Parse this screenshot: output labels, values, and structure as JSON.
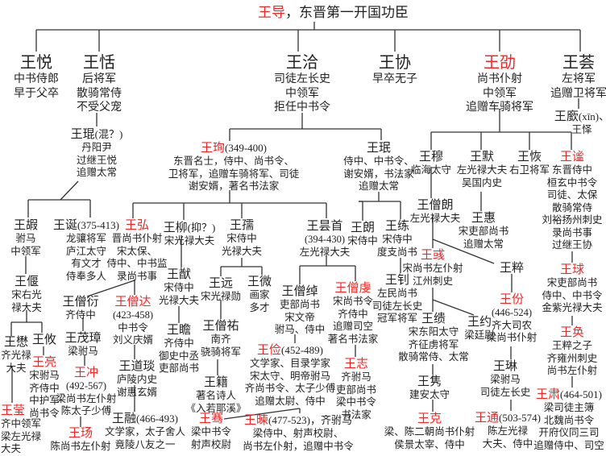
{
  "title": {
    "name": "王导",
    "rest": "，东晋第一开国功臣"
  },
  "accent_color": "#f02828",
  "persons": [
    {
      "id": "yue",
      "name": "王悦",
      "notes": [
        "中书侍郎",
        "早于父卒"
      ]
    },
    {
      "id": "tian",
      "name": "王恬",
      "notes": [
        "后将军",
        "散骑常侍",
        "不受父宠"
      ]
    },
    {
      "id": "qia",
      "name": "王洽",
      "notes": [
        "司徒左长史",
        "中领军",
        "拒任中书令"
      ]
    },
    {
      "id": "xie",
      "name": "王协",
      "notes": [
        "早卒无子"
      ]
    },
    {
      "id": "shao",
      "name": "王劭",
      "red": true,
      "notes": [
        "尚书仆射",
        "中领军",
        "追赠车骑将军"
      ]
    },
    {
      "id": "hui",
      "name": "王荟",
      "notes": [
        "左将军",
        "追赠卫将军"
      ]
    },
    {
      "id": "xin",
      "name": "王廞",
      "suffix": "(xīn)、",
      "notes": [
        "王怿"
      ]
    },
    {
      "id": "kun",
      "name": "王琨",
      "suffix": "(混？)",
      "notes": [
        "丹阳尹",
        "过继王悦",
        "追赠太常"
      ]
    },
    {
      "id": "xia",
      "name": "王嘏",
      "notes": [
        "驸马",
        "中领军"
      ]
    },
    {
      "id": "dan",
      "name": "王诞",
      "suffix": "(375-413)",
      "notes": [
        "龙骧将军",
        "庐江太守",
        "有文才",
        "侍奉多人"
      ]
    },
    {
      "id": "yan",
      "name": "王偃",
      "notes": [
        "宋右光",
        "禄大夫"
      ]
    },
    {
      "id": "mao",
      "name": "王懋",
      "notes": [
        "齐光禄",
        "大夫"
      ]
    },
    {
      "id": "you",
      "name": "王攸",
      "notes": []
    },
    {
      "id": "liang",
      "name": "王亮",
      "red": true,
      "notes": [
        "宋驸马",
        "齐侍中",
        "中护军",
        "尚书令"
      ]
    },
    {
      "id": "ying",
      "name": "王莹",
      "red": true,
      "notes": [
        "齐中领军",
        "梁左光禄",
        "大夫"
      ]
    },
    {
      "id": "xun",
      "name": "王珣",
      "red": true,
      "suffix": "(349-400)",
      "notes": [
        "东晋名士，侍中、尚书令、",
        "卫将军，追赠车骑将军、司徒",
        "谢安婿，著名书法家"
      ]
    },
    {
      "id": "min",
      "name": "王珉",
      "notes": [
        "侍中、中书令、",
        "谢安婿，书法家",
        "追赠太常"
      ]
    },
    {
      "id": "hong",
      "name": "王弘",
      "red": true,
      "notes": [
        "晋尚书仆射",
        "宋太保、",
        "侍中、中书监",
        "录尚书事"
      ]
    },
    {
      "id": "liu",
      "name": "王柳",
      "suffix": "(抑？)",
      "notes": [
        "宋光禄大夫"
      ]
    },
    {
      "id": "ru",
      "name": "王孺",
      "notes": [
        "宋侍中",
        "光禄大夫"
      ]
    },
    {
      "id": "tanshou",
      "name": "王昙首",
      "notes": [
        "(394-430)",
        "左光禄大夫"
      ]
    },
    {
      "id": "lang",
      "name": "王朗",
      "notes": [
        "宋侍中"
      ]
    },
    {
      "id": "lian",
      "name": "王练",
      "notes": [
        "宋侍中",
        "度支尚书"
      ]
    },
    {
      "id": "sengyan",
      "name": "王僧衍",
      "notes": [
        "齐侍中"
      ]
    },
    {
      "id": "sengda",
      "name": "王僧达",
      "red": true,
      "notes": [
        "(423-458)",
        "中书令",
        "刘义庆婿"
      ]
    },
    {
      "id": "yous",
      "name": "王猷",
      "notes": [
        "宋侍中",
        "光禄大夫"
      ]
    },
    {
      "id": "yuan",
      "name": "王远",
      "notes": [
        "宋光禄勋"
      ]
    },
    {
      "id": "wei",
      "name": "王微",
      "notes": [
        "画家",
        "多才"
      ]
    },
    {
      "id": "sengchuo",
      "name": "王僧绰",
      "notes": [
        "吏部尚书",
        "宋文帝",
        "驸马、侍中"
      ]
    },
    {
      "id": "sengqian",
      "name": "王僧虔",
      "red": true,
      "notes": [
        "宋尚书令",
        "齐侍中",
        "追赠司空",
        "著名书法家"
      ]
    },
    {
      "id": "zhao",
      "name": "王钊",
      "notes": [
        "左民尚书",
        "司徒左长史",
        "冠军将军"
      ]
    },
    {
      "id": "maozhang",
      "name": "王茂璋",
      "notes": [
        "梁驸马"
      ]
    },
    {
      "id": "chong",
      "name": "王冲",
      "red": true,
      "notes": [
        "(492-567)",
        "梁尚书左仆射",
        "陈太子少傅"
      ]
    },
    {
      "id": "yang",
      "name": "王玚",
      "red": true,
      "notes": [
        "陈尚书左仆射"
      ]
    },
    {
      "id": "daoyan",
      "name": "王道琰",
      "notes": [
        "庐陵内史",
        "谢惠玄婿"
      ]
    },
    {
      "id": "rong",
      "name": "王融",
      "suffix": "(466-493)",
      "notes": [
        "文学家，太子舍人",
        "竟陵八友之一"
      ]
    },
    {
      "id": "zhan",
      "name": "王瞻",
      "notes": [
        "齐侍中",
        "御史中丞",
        "吏部尚书"
      ]
    },
    {
      "id": "sengyou",
      "name": "王僧祐",
      "notes": [
        "南齐",
        "骁骑将军"
      ]
    },
    {
      "id": "ji",
      "name": "王籍",
      "notes": [
        "著名诗人",
        "《入若耶溪》"
      ]
    },
    {
      "id": "jian",
      "name": "王俭",
      "red": true,
      "suffix": "(452-489)",
      "notes": [
        "文学家、目录学家",
        "宋太守、明帝驸马",
        "齐尚书令、太子少傅",
        "追赠太尉、侍中"
      ]
    },
    {
      "id": "zhi",
      "name": "王志",
      "red": true,
      "notes": [
        "齐驸马",
        "吏部尚书",
        "梁中书令",
        "书法家"
      ]
    },
    {
      "id": "qian",
      "name": "王骞",
      "red": true,
      "notes": [
        "梁中书令",
        "射声校尉"
      ]
    },
    {
      "id": "jianx",
      "name": "王暕",
      "red": true,
      "suffix": "(477-523)，齐驸马",
      "notes": [
        "梁侍中、射声校尉、",
        "尚书左仆射，追赠中书令"
      ]
    },
    {
      "id": "mu",
      "name": "王穆",
      "notes": [
        "临海太守"
      ]
    },
    {
      "id": "mo",
      "name": "王默",
      "notes": [
        "左光禄大夫",
        "吴国内史"
      ]
    },
    {
      "id": "huik",
      "name": "王恢",
      "notes": [
        "右卫将军"
      ]
    },
    {
      "id": "mi",
      "name": "王谧",
      "red": true,
      "notes": [
        "东晋侍中",
        "桓玄中书令",
        "司徒、太保",
        "散骑常侍",
        "刘裕扬州刺史",
        "录尚书事",
        "过继王协"
      ]
    },
    {
      "id": "senglang",
      "name": "王僧朗",
      "notes": [
        "左光禄大夫"
      ]
    },
    {
      "id": "huis",
      "name": "王惠",
      "notes": [
        "宋吏部尚书",
        "追赠太常"
      ]
    },
    {
      "id": "yu",
      "name": "王彧",
      "red": true,
      "notes": [
        "宋尚书左仆射",
        "江州刺史"
      ]
    },
    {
      "id": "cui",
      "name": "王粹",
      "notes": []
    },
    {
      "id": "qiu",
      "name": "王球",
      "red": true,
      "notes": [
        "宋吏部尚书",
        "侍中、中书令",
        "金紫光禄大夫"
      ]
    },
    {
      "id": "hui2",
      "name": "王缋",
      "notes": [
        "宋东阳太守",
        "齐征虏将军",
        "散骑常侍、太常"
      ]
    },
    {
      "id": "yue2",
      "name": "王约",
      "notes": [
        "梁廷尉"
      ]
    },
    {
      "id": "fen",
      "name": "王份",
      "red": true,
      "notes": [
        "(446-524)",
        "齐大司农",
        "梁尚书仆射"
      ]
    },
    {
      "id": "huan",
      "name": "王奂",
      "red": true,
      "notes": [
        "王粹之子",
        "齐雍州刺史",
        "尚书左仆射"
      ]
    },
    {
      "id": "juan",
      "name": "王隽",
      "notes": [
        "建安太守"
      ]
    },
    {
      "id": "lin",
      "name": "王琳",
      "notes": [
        "梁驸马",
        "司徒左长史"
      ]
    },
    {
      "id": "su",
      "name": "王肃",
      "red": true,
      "suffix": "(464-501)",
      "notes": [
        "梁司徒主簿",
        "北魏尚书令",
        "开府仪同三司",
        "追赠侍中、司空"
      ]
    },
    {
      "id": "ke",
      "name": "王克",
      "red": true,
      "notes": [
        "梁、陈二朝尚书仆射",
        "侯景太宰、侍中"
      ]
    },
    {
      "id": "tong",
      "name": "王通",
      "red": true,
      "suffix": "(503-574)",
      "notes": [
        "陈左光禄",
        "大夫、侍中"
      ]
    }
  ]
}
